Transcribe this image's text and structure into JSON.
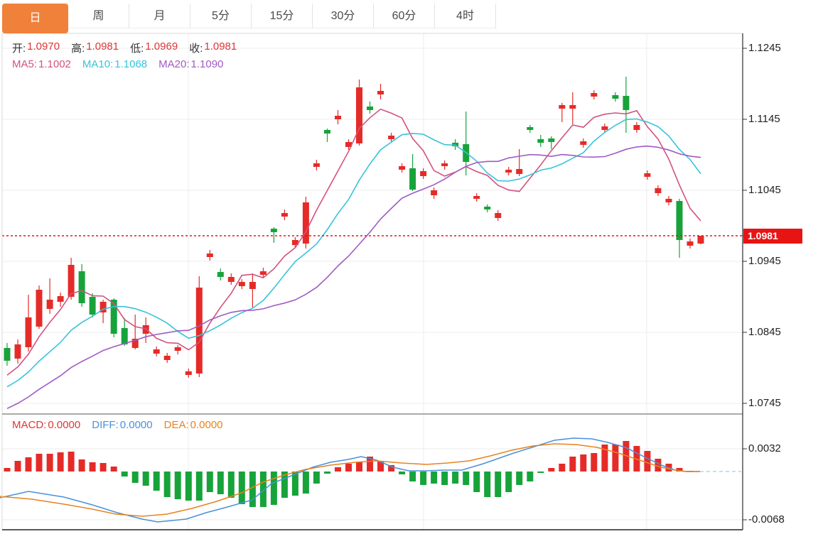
{
  "tabs": {
    "items": [
      {
        "label": "日",
        "active": true
      },
      {
        "label": "周",
        "active": false
      },
      {
        "label": "月",
        "active": false
      },
      {
        "label": "5分",
        "active": false
      },
      {
        "label": "15分",
        "active": false
      },
      {
        "label": "30分",
        "active": false
      },
      {
        "label": "60分",
        "active": false
      },
      {
        "label": "4时",
        "active": false
      }
    ]
  },
  "overlay": {
    "ohlc": [
      {
        "label": "开:",
        "value": "1.0970"
      },
      {
        "label": "高:",
        "value": "1.0981"
      },
      {
        "label": "低:",
        "value": "1.0969"
      },
      {
        "label": "收:",
        "value": "1.0981"
      }
    ],
    "ma": [
      {
        "label": "MA5:",
        "value": "1.1002"
      },
      {
        "label": "MA10:",
        "value": "1.1068"
      },
      {
        "label": "MA20:",
        "value": "1.1090"
      }
    ],
    "macd": [
      {
        "label": "MACD:",
        "value": "0.0000"
      },
      {
        "label": "DIFF:",
        "value": "0.0000"
      },
      {
        "label": "DEA:",
        "value": "0.0000"
      }
    ]
  },
  "axis": {
    "price_labels": [
      "1.1245",
      "1.1145",
      "1.1045",
      "1.0945",
      "1.0845",
      "1.0745"
    ],
    "macd_labels": [
      "0.0032",
      "-0.0068"
    ],
    "last_price_label": "1.0981"
  },
  "colors": {
    "up": "#e52b28",
    "down": "#17a33a",
    "ma5": "#d2527f",
    "ma10": "#36c3d8",
    "ma20": "#a05ac4",
    "diff": "#4a90d9",
    "dea": "#e8821e",
    "accent": "#f0813a",
    "price_line": "#e81414",
    "value_red": "#e03535",
    "label": "#333333"
  },
  "chart_data": {
    "type": "candlestick",
    "timeframe": "日",
    "legend": [
      "MA5",
      "MA10",
      "MA20"
    ],
    "price_axis": {
      "max": 1.1245,
      "min": 1.0745,
      "ticks": [
        1.1245,
        1.1145,
        1.1045,
        1.0945,
        1.0845,
        1.0745
      ]
    },
    "last_price": 1.0981,
    "ohlc_current": {
      "open": 1.097,
      "high": 1.0981,
      "low": 1.0969,
      "close": 1.0981
    },
    "moving_averages_current": {
      "ma5": 1.1002,
      "ma10": 1.1068,
      "ma20": 1.109
    },
    "candles_ohlc": [
      [
        1.0823,
        1.083,
        1.0798,
        1.0805
      ],
      [
        1.0808,
        1.0835,
        1.0801,
        1.0828
      ],
      [
        1.0824,
        1.0898,
        1.0818,
        1.0866
      ],
      [
        1.0853,
        1.0911,
        1.085,
        1.0905
      ],
      [
        1.0878,
        1.0921,
        1.0871,
        1.0891
      ],
      [
        1.0888,
        1.0901,
        1.0881,
        1.0896
      ],
      [
        1.0895,
        1.095,
        1.0891,
        1.094
      ],
      [
        1.0931,
        1.0941,
        1.0881,
        1.0886
      ],
      [
        1.0895,
        1.09,
        1.0866,
        1.087
      ],
      [
        1.0873,
        1.0891,
        1.0858,
        1.0888
      ],
      [
        1.0891,
        1.0893,
        1.0838,
        1.0843
      ],
      [
        1.0851,
        1.0865,
        1.0826,
        1.0828
      ],
      [
        1.0823,
        1.087,
        1.0821,
        1.0836
      ],
      [
        1.0843,
        1.0866,
        1.083,
        1.0855
      ],
      [
        1.0815,
        1.0825,
        1.0811,
        1.0821
      ],
      [
        1.0806,
        1.0816,
        1.0802,
        1.0812
      ],
      [
        1.0819,
        1.0827,
        1.0814,
        1.0824
      ],
      [
        1.0785,
        1.0794,
        1.0781,
        1.079
      ],
      [
        1.0787,
        1.0924,
        1.0782,
        1.0908
      ],
      [
        1.0951,
        1.0961,
        1.0946,
        1.0956
      ],
      [
        1.093,
        1.0935,
        1.0918,
        1.0923
      ],
      [
        1.0916,
        1.0928,
        1.0912,
        1.0923
      ],
      [
        1.091,
        1.092,
        1.0906,
        1.0916
      ],
      [
        1.0906,
        1.0928,
        1.088,
        1.0916
      ],
      [
        1.0926,
        1.0936,
        1.0922,
        1.0931
      ],
      [
        1.0991,
        1.0993,
        1.0971,
        1.0986
      ],
      [
        1.1008,
        1.1018,
        1.1003,
        1.1013
      ],
      [
        1.0968,
        1.0979,
        1.0964,
        1.0975
      ],
      [
        1.097,
        1.1036,
        1.0963,
        1.1028
      ],
      [
        1.1078,
        1.1088,
        1.1073,
        1.1083
      ],
      [
        1.113,
        1.1132,
        1.1113,
        1.1125
      ],
      [
        1.1145,
        1.1158,
        1.1138,
        1.115
      ],
      [
        1.1106,
        1.1117,
        1.1102,
        1.1113
      ],
      [
        1.1111,
        1.1201,
        1.1108,
        1.119
      ],
      [
        1.1163,
        1.117,
        1.1153,
        1.1158
      ],
      [
        1.118,
        1.1195,
        1.1173,
        1.1185
      ],
      [
        1.1117,
        1.1126,
        1.1113,
        1.1122
      ],
      [
        1.1074,
        1.1083,
        1.107,
        1.1079
      ],
      [
        1.1076,
        1.1096,
        1.1044,
        1.1046
      ],
      [
        1.1065,
        1.1076,
        1.1061,
        1.1072
      ],
      [
        1.1038,
        1.1049,
        1.1033,
        1.1045
      ],
      [
        1.1079,
        1.1087,
        1.1074,
        1.1083
      ],
      [
        1.1112,
        1.1117,
        1.1102,
        1.1107
      ],
      [
        1.111,
        1.1156,
        1.1066,
        1.1085
      ],
      [
        1.1033,
        1.1041,
        1.1029,
        1.1037
      ],
      [
        1.1022,
        1.1025,
        1.1014,
        1.1018
      ],
      [
        1.1006,
        1.1017,
        1.1002,
        1.1013
      ],
      [
        1.107,
        1.1078,
        1.1066,
        1.1074
      ],
      [
        1.1068,
        1.1103,
        1.1065,
        1.1075
      ],
      [
        1.1134,
        1.1137,
        1.1126,
        1.113
      ],
      [
        1.1117,
        1.1123,
        1.1106,
        1.1112
      ],
      [
        1.1118,
        1.1121,
        1.1103,
        1.1113
      ],
      [
        1.116,
        1.1168,
        1.1141,
        1.1165
      ],
      [
        1.116,
        1.1183,
        1.1138,
        1.1165
      ],
      [
        1.1109,
        1.1118,
        1.1105,
        1.1114
      ],
      [
        1.1177,
        1.1186,
        1.1173,
        1.1182
      ],
      [
        1.113,
        1.1139,
        1.1126,
        1.1135
      ],
      [
        1.1179,
        1.1183,
        1.117,
        1.1174
      ],
      [
        1.1178,
        1.1205,
        1.1126,
        1.1158
      ],
      [
        1.113,
        1.1141,
        1.1126,
        1.1137
      ],
      [
        1.1064,
        1.1073,
        1.106,
        1.1069
      ],
      [
        1.1041,
        1.1052,
        1.1037,
        1.1048
      ],
      [
        1.1028,
        1.1037,
        1.1024,
        1.1033
      ],
      [
        1.103,
        1.1033,
        1.095,
        1.0975
      ],
      [
        1.0967,
        1.0977,
        1.0963,
        1.0973
      ],
      [
        1.097,
        1.0981,
        1.0969,
        1.0981
      ]
    ],
    "prior_closes": [
      1.068,
      1.0686,
      1.0692,
      1.0698,
      1.0704,
      1.071,
      1.0716,
      1.0722,
      1.0728,
      1.0734,
      1.074,
      1.0746,
      1.0752,
      1.0758,
      1.0764,
      1.077,
      1.0776,
      1.0782,
      1.079
    ],
    "macd": {
      "current": {
        "macd": 0.0,
        "diff": 0.0,
        "dea": 0.0
      },
      "axis_ticks": [
        0.0032,
        -0.0068
      ],
      "histogram": [
        0.0005,
        0.0015,
        0.002,
        0.0025,
        0.0025,
        0.0027,
        0.0028,
        0.0017,
        0.0013,
        0.0012,
        0.0007,
        -0.0007,
        -0.0016,
        -0.002,
        -0.0027,
        -0.0036,
        -0.0039,
        -0.0041,
        -0.0041,
        -0.0029,
        -0.0032,
        -0.0037,
        -0.0046,
        -0.005,
        -0.005,
        -0.0047,
        -0.0037,
        -0.0034,
        -0.0031,
        -0.0017,
        -0.0003,
        0.0006,
        0.0011,
        0.0013,
        0.0021,
        0.0014,
        0.0009,
        -0.0004,
        -0.0014,
        -0.0019,
        -0.0017,
        -0.0019,
        -0.0017,
        -0.0019,
        -0.0029,
        -0.0036,
        -0.0036,
        -0.0029,
        -0.0019,
        -0.0014,
        -0.0002,
        0.0005,
        0.0011,
        0.0021,
        0.0024,
        0.0026,
        0.0038,
        0.0038,
        0.0043,
        0.0036,
        0.0029,
        0.0018,
        0.0011,
        0.0005,
        0.0001,
        0.0
      ],
      "diff_line": [
        [
          0,
          -0.0037
        ],
        [
          40,
          -0.0028
        ],
        [
          90,
          -0.0036
        ],
        [
          130,
          -0.0047
        ],
        [
          165,
          -0.0058
        ],
        [
          200,
          -0.0067
        ],
        [
          222,
          -0.0071
        ],
        [
          262,
          -0.0067
        ],
        [
          290,
          -0.0058
        ],
        [
          320,
          -0.005
        ],
        [
          355,
          -0.004
        ],
        [
          382,
          -0.0017
        ],
        [
          415,
          -0.0004
        ],
        [
          440,
          0.0006
        ],
        [
          465,
          0.0013
        ],
        [
          490,
          0.0017
        ],
        [
          508,
          0.0021
        ],
        [
          530,
          0.0016
        ],
        [
          553,
          0.0006
        ],
        [
          575,
          0.0001
        ],
        [
          600,
          0.0001
        ],
        [
          625,
          0.0002
        ],
        [
          650,
          0.0002
        ],
        [
          680,
          0.0011
        ],
        [
          723,
          0.0026
        ],
        [
          755,
          0.0036
        ],
        [
          780,
          0.0044
        ],
        [
          807,
          0.0047
        ],
        [
          833,
          0.0046
        ],
        [
          855,
          0.0041
        ],
        [
          880,
          0.0034
        ],
        [
          910,
          0.0019
        ],
        [
          933,
          0.0008
        ],
        [
          950,
          0.0002
        ],
        [
          965,
          0.0
        ],
        [
          985,
          0.0
        ]
      ],
      "dea_line": [
        [
          0,
          -0.0035
        ],
        [
          45,
          -0.0039
        ],
        [
          90,
          -0.0046
        ],
        [
          130,
          -0.0053
        ],
        [
          163,
          -0.006
        ],
        [
          200,
          -0.0063
        ],
        [
          235,
          -0.006
        ],
        [
          270,
          -0.0052
        ],
        [
          305,
          -0.0042
        ],
        [
          340,
          -0.003
        ],
        [
          370,
          -0.0015
        ],
        [
          400,
          -0.0005
        ],
        [
          430,
          0.0003
        ],
        [
          465,
          0.0009
        ],
        [
          500,
          0.0013
        ],
        [
          530,
          0.0015
        ],
        [
          565,
          0.0012
        ],
        [
          600,
          0.001
        ],
        [
          630,
          0.0012
        ],
        [
          660,
          0.0015
        ],
        [
          690,
          0.0022
        ],
        [
          720,
          0.003
        ],
        [
          750,
          0.0036
        ],
        [
          780,
          0.0039
        ],
        [
          810,
          0.0038
        ],
        [
          840,
          0.0034
        ],
        [
          870,
          0.0026
        ],
        [
          900,
          0.0016
        ],
        [
          930,
          0.0006
        ],
        [
          950,
          0.0002
        ],
        [
          965,
          0.0
        ],
        [
          985,
          0.0
        ]
      ]
    }
  }
}
